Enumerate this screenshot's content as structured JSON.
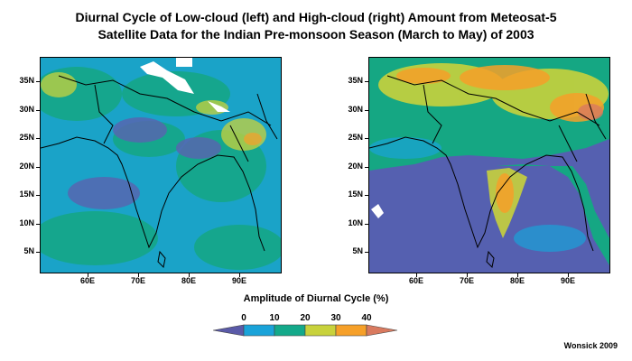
{
  "title": {
    "line1": "Diurnal Cycle of Low-cloud (left) and High-cloud (right) Amount from Meteosat-5",
    "line2": "Satellite Data for the Indian Pre-monsoon Season (March to May) of 2003"
  },
  "lat_ticks": [
    "35N",
    "30N",
    "25N",
    "20N",
    "15N",
    "10N",
    "5N"
  ],
  "lon_ticks": [
    "60E",
    "70E",
    "80E",
    "90E"
  ],
  "colorbar": {
    "label": "Amplitude of Diurnal Cycle (%)",
    "ticks": [
      "0",
      "10",
      "20",
      "30",
      "40"
    ],
    "colors": [
      "#5a5aa8",
      "#1aa3d9",
      "#13a98a",
      "#c8d23c",
      "#f6a029",
      "#d97a5f"
    ]
  },
  "credit": "Wonsick 2009"
}
